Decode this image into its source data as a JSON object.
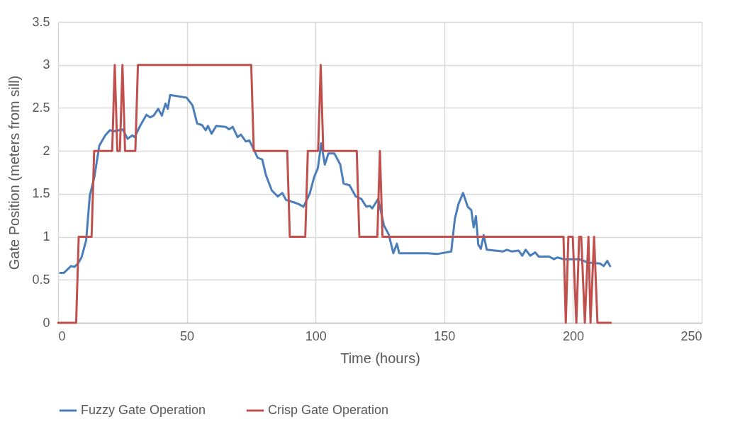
{
  "chart_data": {
    "type": "line",
    "xlabel": "Time (hours)",
    "ylabel": "Gate Position (meters from sill)",
    "xlim": [
      0,
      250
    ],
    "xticks": [
      0,
      50,
      100,
      150,
      200,
      250
    ],
    "ylim": [
      0,
      3.5
    ],
    "yticks": [
      0,
      0.5,
      1,
      1.5,
      2,
      2.5,
      3,
      3.5
    ],
    "grid": true,
    "legend": "bottom",
    "line_style": "solid",
    "marker": "none",
    "series": [
      {
        "name": "Fuzzy Gate Operation",
        "color": "#4a7ebb",
        "x": [
          0.8,
          2.2,
          5,
          6.3,
          7.7,
          9.1,
          10.9,
          12.3,
          14.1,
          16,
          18.3,
          20.1,
          21.9,
          25.1,
          27,
          28.8,
          29.7,
          32,
          34.3,
          35.7,
          37.1,
          38.9,
          40.3,
          41.7,
          42.6,
          43.5,
          49.9,
          52.2,
          54,
          55.9,
          57.3,
          58.2,
          59.6,
          61.4,
          65.1,
          66.4,
          67.8,
          69.7,
          71,
          72.9,
          74.3,
          76.1,
          77.5,
          79.3,
          80.7,
          83,
          85.3,
          87.1,
          88.5,
          91.7,
          93.5,
          95.3,
          97.7,
          99.5,
          100.9,
          102.2,
          103.6,
          105,
          107.3,
          109.6,
          110.9,
          113.2,
          115.6,
          117.8,
          119.7,
          121.1,
          122,
          124.3,
          126.6,
          128.4,
          130.2,
          131.6,
          132.5,
          143.5,
          147.2,
          152.7,
          154.1,
          155.5,
          157.3,
          159.1,
          160.5,
          161.4,
          162.3,
          163.2,
          164.2,
          165.3,
          166.5,
          172.9,
          174.3,
          176.1,
          178.9,
          180.3,
          181.6,
          183.4,
          185.3,
          186.7,
          190.8,
          192.6,
          194,
          196.3,
          202.3,
          206,
          210.5,
          211.9,
          213.3,
          214.4
        ],
        "values": [
          0.58,
          0.58,
          0.66,
          0.65,
          0.69,
          0.76,
          0.96,
          1.48,
          1.7,
          2.06,
          2.18,
          2.24,
          2.23,
          2.25,
          2.14,
          2.18,
          2.16,
          2.3,
          2.42,
          2.39,
          2.41,
          2.49,
          2.41,
          2.55,
          2.49,
          2.65,
          2.62,
          2.53,
          2.32,
          2.3,
          2.24,
          2.29,
          2.2,
          2.29,
          2.28,
          2.25,
          2.28,
          2.16,
          2.19,
          2.11,
          2.12,
          2.01,
          1.92,
          1.9,
          1.72,
          1.54,
          1.47,
          1.51,
          1.43,
          1.4,
          1.38,
          1.35,
          1.5,
          1.7,
          1.8,
          2.09,
          1.84,
          1.97,
          1.97,
          1.84,
          1.62,
          1.6,
          1.47,
          1.44,
          1.35,
          1.36,
          1.33,
          1.44,
          1.13,
          1.03,
          0.81,
          0.92,
          0.81,
          0.81,
          0.8,
          0.83,
          1.21,
          1.38,
          1.51,
          1.35,
          1.31,
          1.11,
          1.24,
          0.91,
          0.86,
          1.02,
          0.85,
          0.83,
          0.85,
          0.83,
          0.84,
          0.78,
          0.85,
          0.78,
          0.82,
          0.77,
          0.77,
          0.74,
          0.76,
          0.74,
          0.74,
          0.7,
          0.69,
          0.66,
          0.72,
          0.66
        ]
      },
      {
        "name": "Crisp Gate Operation",
        "color": "#c0504d",
        "x": [
          0,
          7,
          8,
          13,
          14,
          21,
          22,
          23,
          24,
          25,
          26,
          30,
          31,
          75,
          76,
          89,
          90,
          96,
          97,
          101,
          102,
          103,
          116,
          117,
          124,
          125,
          126,
          196.3,
          197.2,
          198.2,
          199.9,
          201.3,
          202.4,
          203.2,
          204.6,
          206,
          206.8,
          208.2,
          209.5,
          214.7
        ],
        "values": [
          0,
          0,
          1,
          1,
          2,
          2,
          3,
          2,
          2,
          3,
          2,
          2,
          3,
          3,
          2,
          2,
          1,
          1,
          2,
          2,
          3,
          2,
          2,
          1,
          1,
          2,
          1,
          1,
          0,
          1,
          1,
          0,
          1,
          1,
          0,
          1,
          0,
          1,
          0,
          0
        ]
      }
    ]
  }
}
